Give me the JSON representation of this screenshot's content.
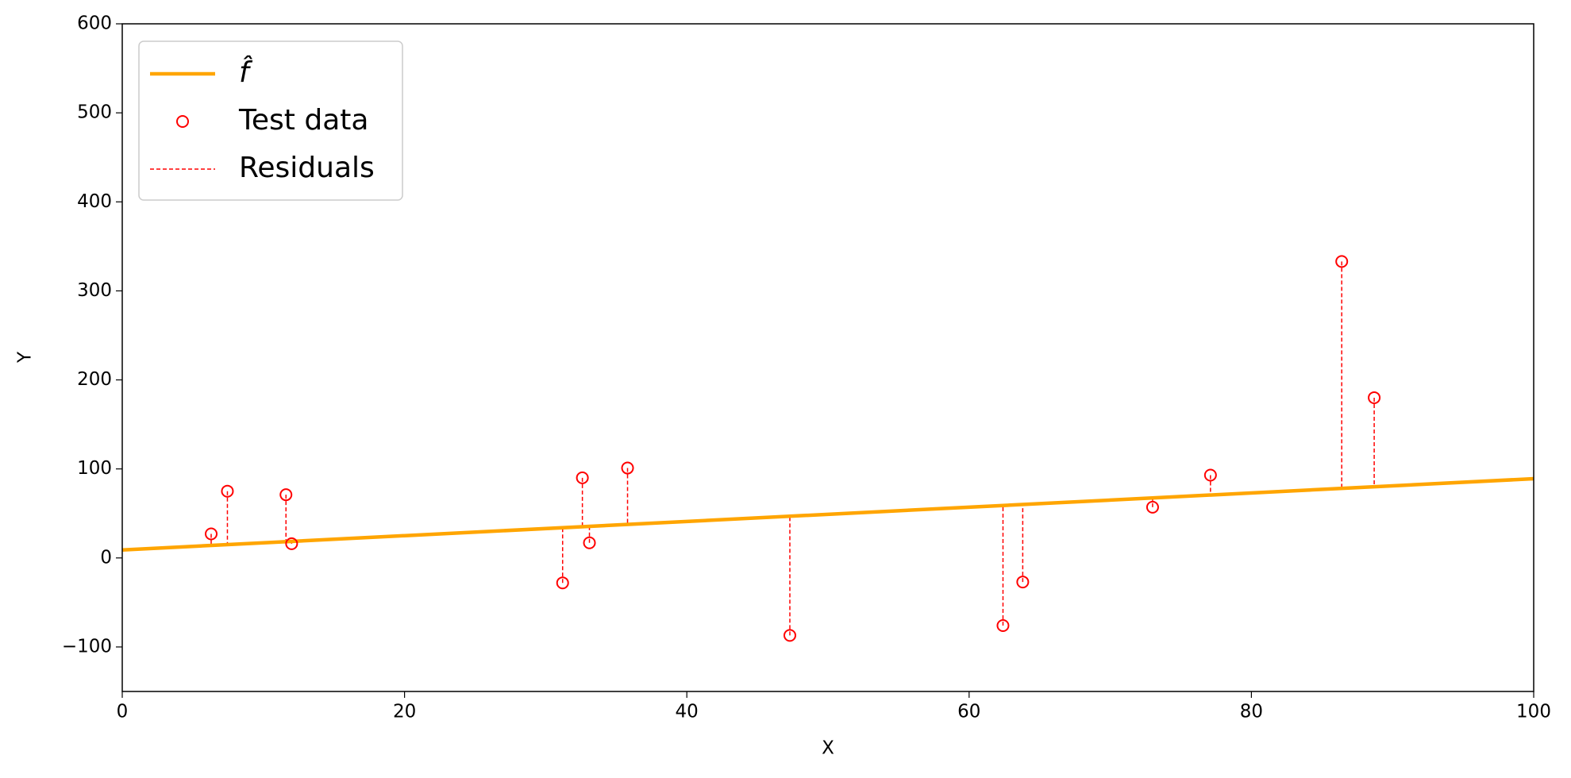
{
  "chart_data": {
    "type": "scatter",
    "xlabel": "X",
    "ylabel": "Y",
    "xlim": [
      0,
      100
    ],
    "ylim": [
      -150,
      600
    ],
    "xticks": [
      0,
      20,
      40,
      60,
      80,
      100
    ],
    "yticks": [
      {
        "value": -100,
        "label": "−100"
      },
      0,
      100,
      200,
      300,
      400,
      500,
      600
    ],
    "legend": "upper left",
    "line": {
      "name": "f̂",
      "color": "#ffa500",
      "x": [
        0,
        100
      ],
      "values": [
        9,
        89
      ]
    },
    "series": [
      {
        "name": "Test data",
        "color": "#ff0000",
        "x": [
          6.3,
          7.45,
          11.6,
          12.0,
          31.2,
          32.6,
          33.1,
          35.8,
          47.3,
          62.4,
          63.8,
          73.0,
          77.1,
          86.4,
          88.7
        ],
        "values": [
          27,
          75,
          71,
          16,
          -28,
          90,
          17,
          101,
          -87,
          -76,
          -27,
          57,
          93,
          333,
          180
        ]
      }
    ],
    "residuals": {
      "name": "Residuals",
      "color": "#ff0000"
    }
  }
}
